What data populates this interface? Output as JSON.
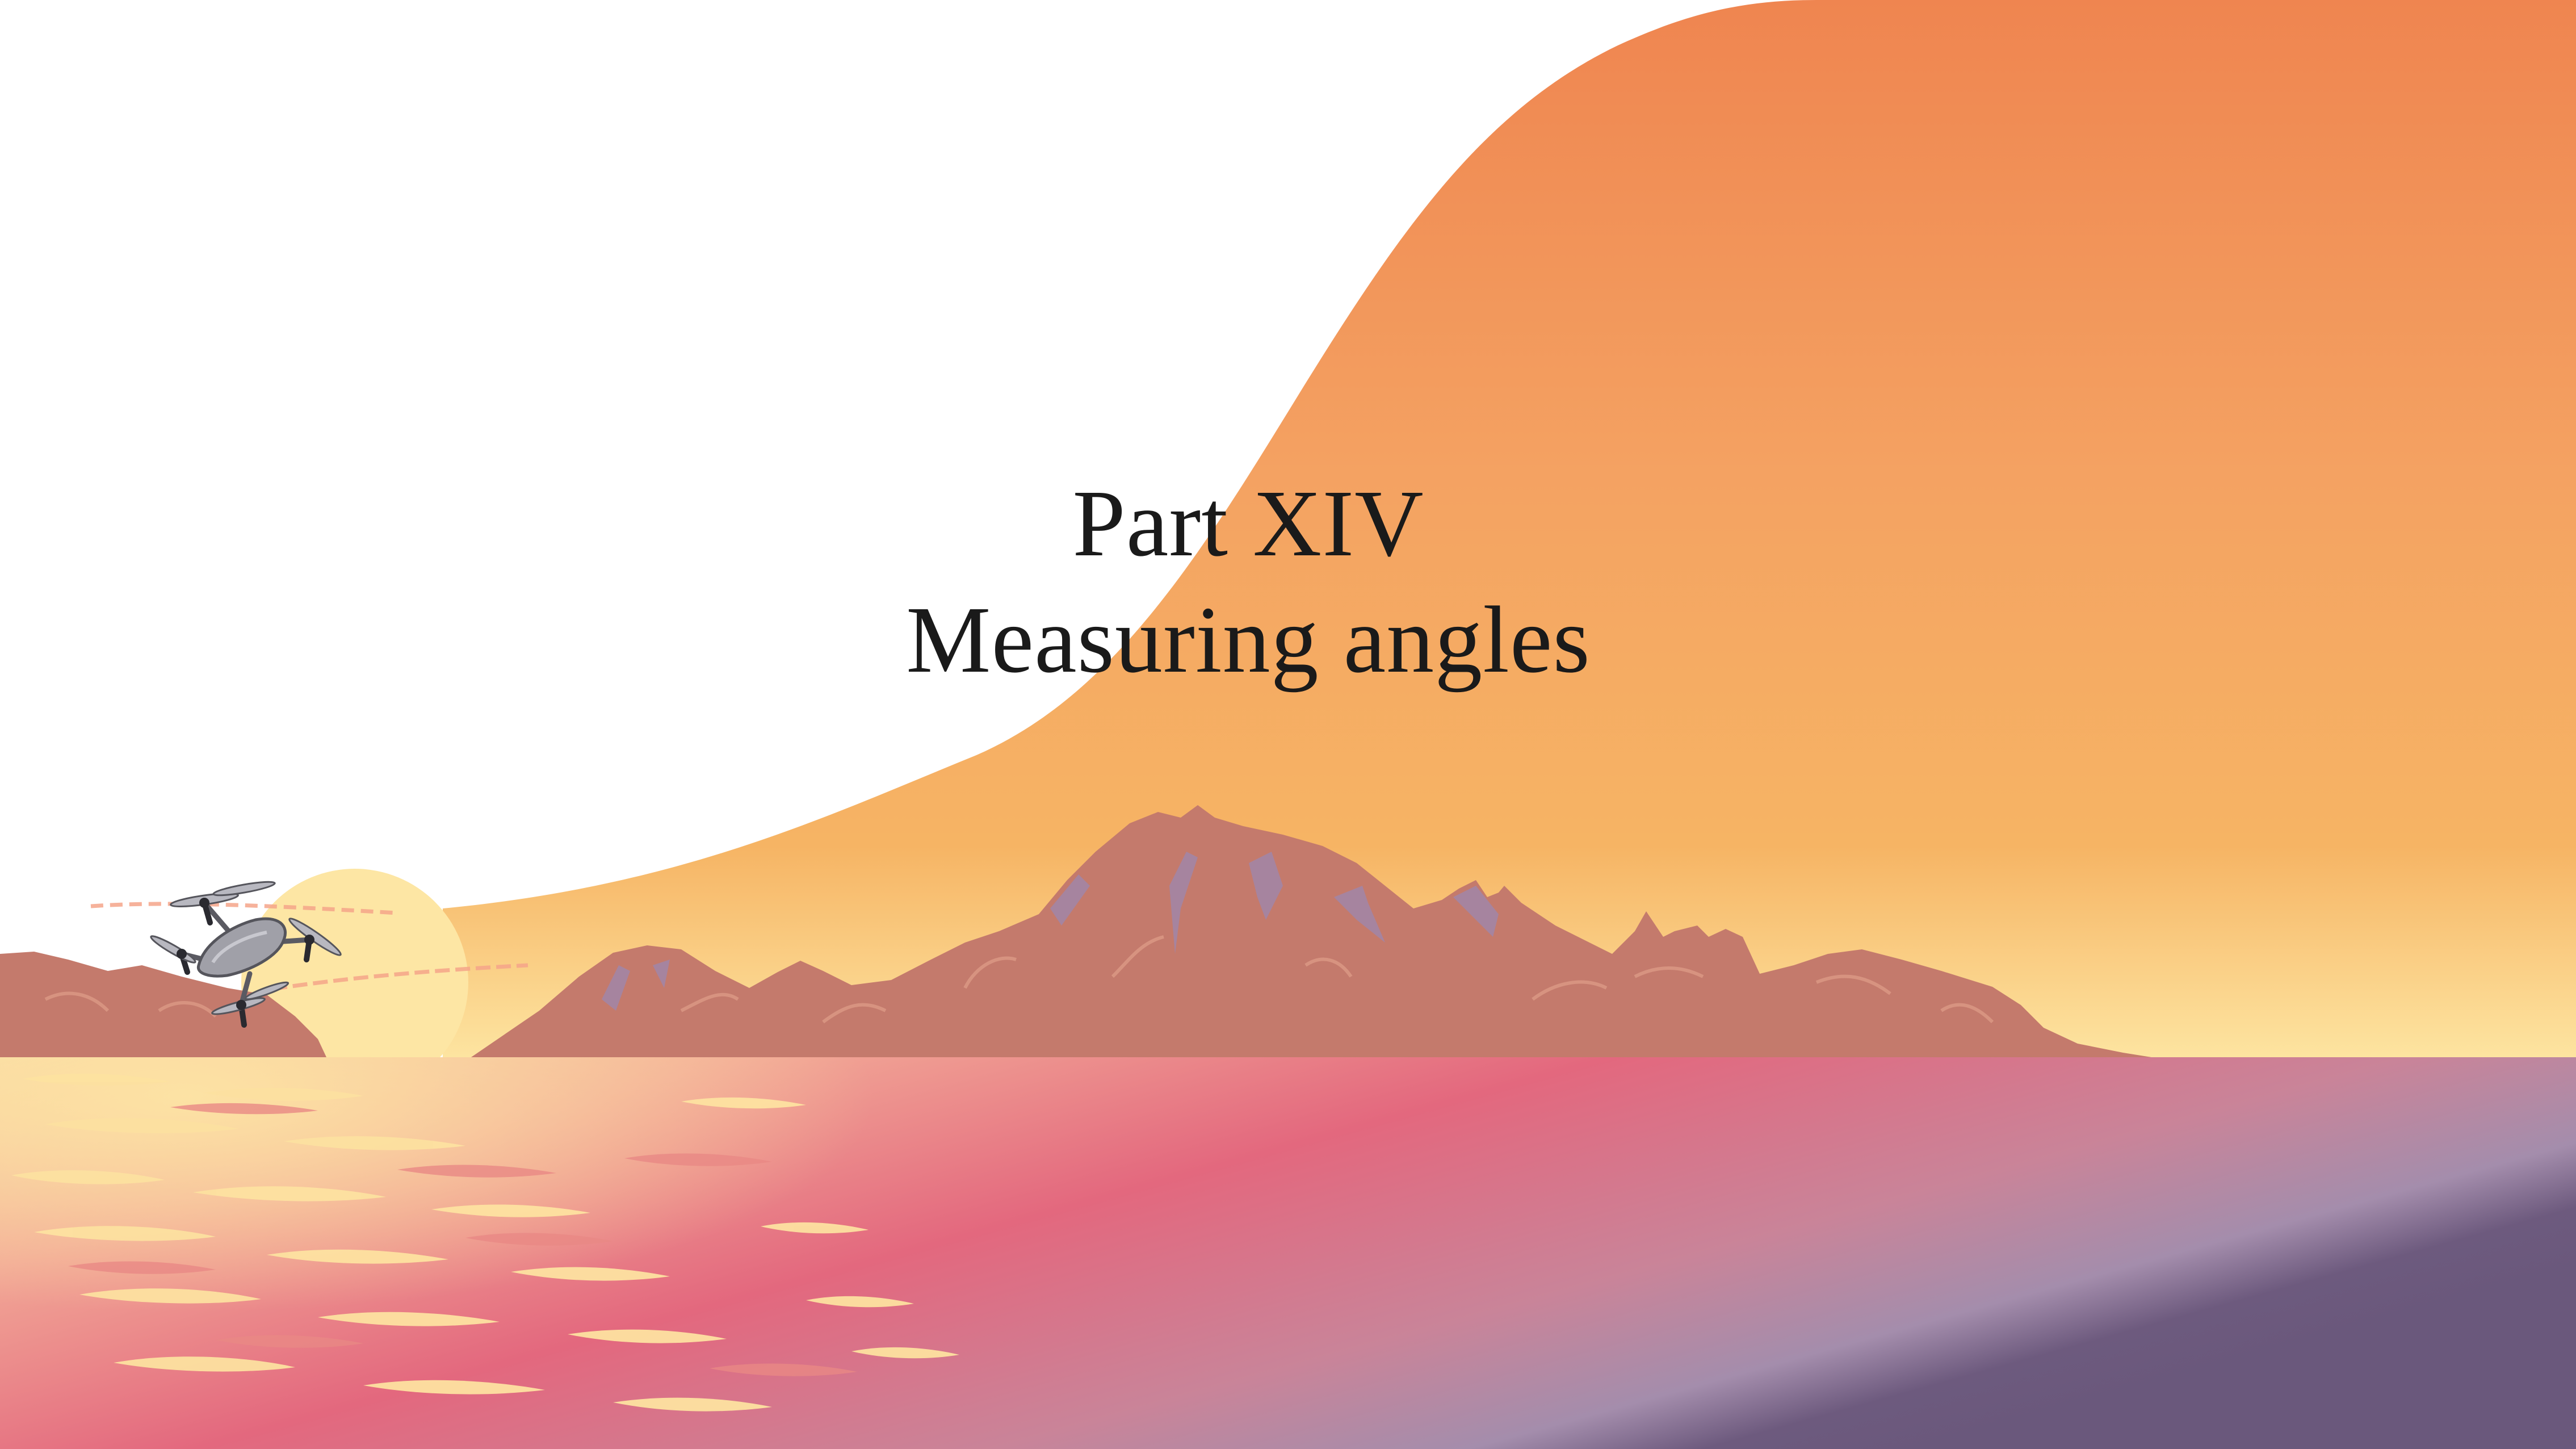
{
  "page": {
    "part_label": "Part XIV",
    "chapter_title": "Measuring angles"
  },
  "illustration": {
    "sky_colors": [
      "#ef8550",
      "#f4a15f",
      "#f6b464",
      "#fde4a0"
    ],
    "sea_colors": [
      "#f7cf9a",
      "#e3687e",
      "#a48dac",
      "#6d5a7e"
    ],
    "mountain_color": "#c47a6c",
    "sun_color": "#fde6a4",
    "drone_color": "#a0a0a8"
  }
}
